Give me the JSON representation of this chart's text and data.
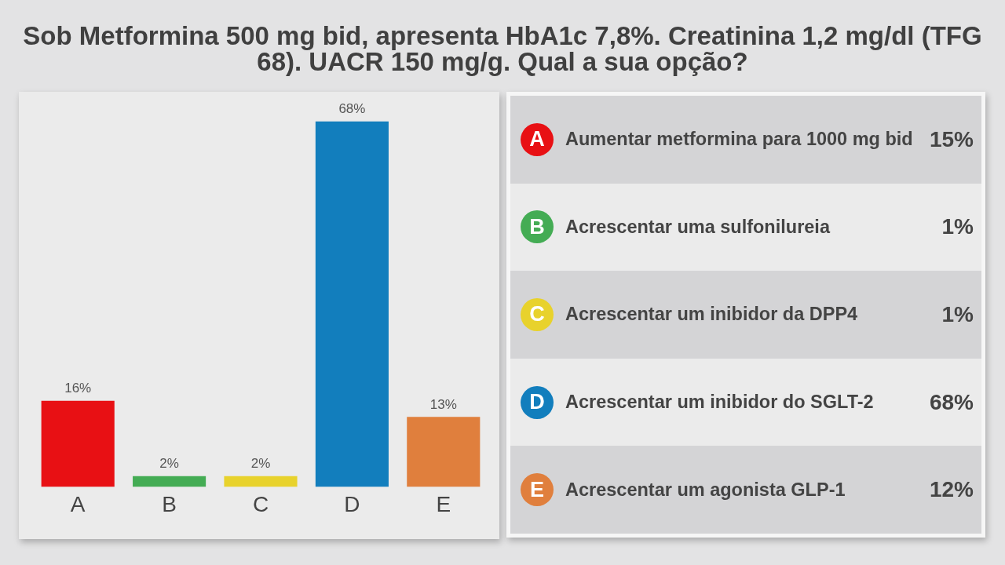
{
  "chart_data": [
    {
      "type": "bar",
      "title": "Sob Metformina 500 mg bid, apresenta HbA1c 7,8%. Creatinina 1,2 mg/dl (TFG 68). UACR 150 mg/g. Qual a sua opção?",
      "categories": [
        "A",
        "B",
        "C",
        "D",
        "E"
      ],
      "values": [
        16,
        2,
        2,
        68,
        13
      ],
      "value_labels": [
        "16%",
        "2%",
        "2%",
        "68%",
        "13%"
      ],
      "colors": [
        "#e81014",
        "#44ac54",
        "#e8d22c",
        "#127ebd",
        "#e07f3d"
      ],
      "tick_labels": "x"
    },
    {
      "type": "other",
      "categories": [
        "A",
        "B",
        "C",
        "D",
        "E"
      ],
      "y2_categories": [
        "Aumentar metformina para 1000 mg bid",
        "Acrescentar uma sulfonilureia",
        "Acrescentar um inibidor da DPP4",
        "Acrescentar um inibidor do SGLT-2",
        "Acrescentar um agonista GLP-1"
      ],
      "value_labels": [
        "15%",
        "1%",
        "1%",
        "68%",
        "12%"
      ],
      "colors": [
        "#e81014",
        "#44ac54",
        "#e8d22c",
        "#127ebd",
        "#e07f3d"
      ]
    }
  ]
}
